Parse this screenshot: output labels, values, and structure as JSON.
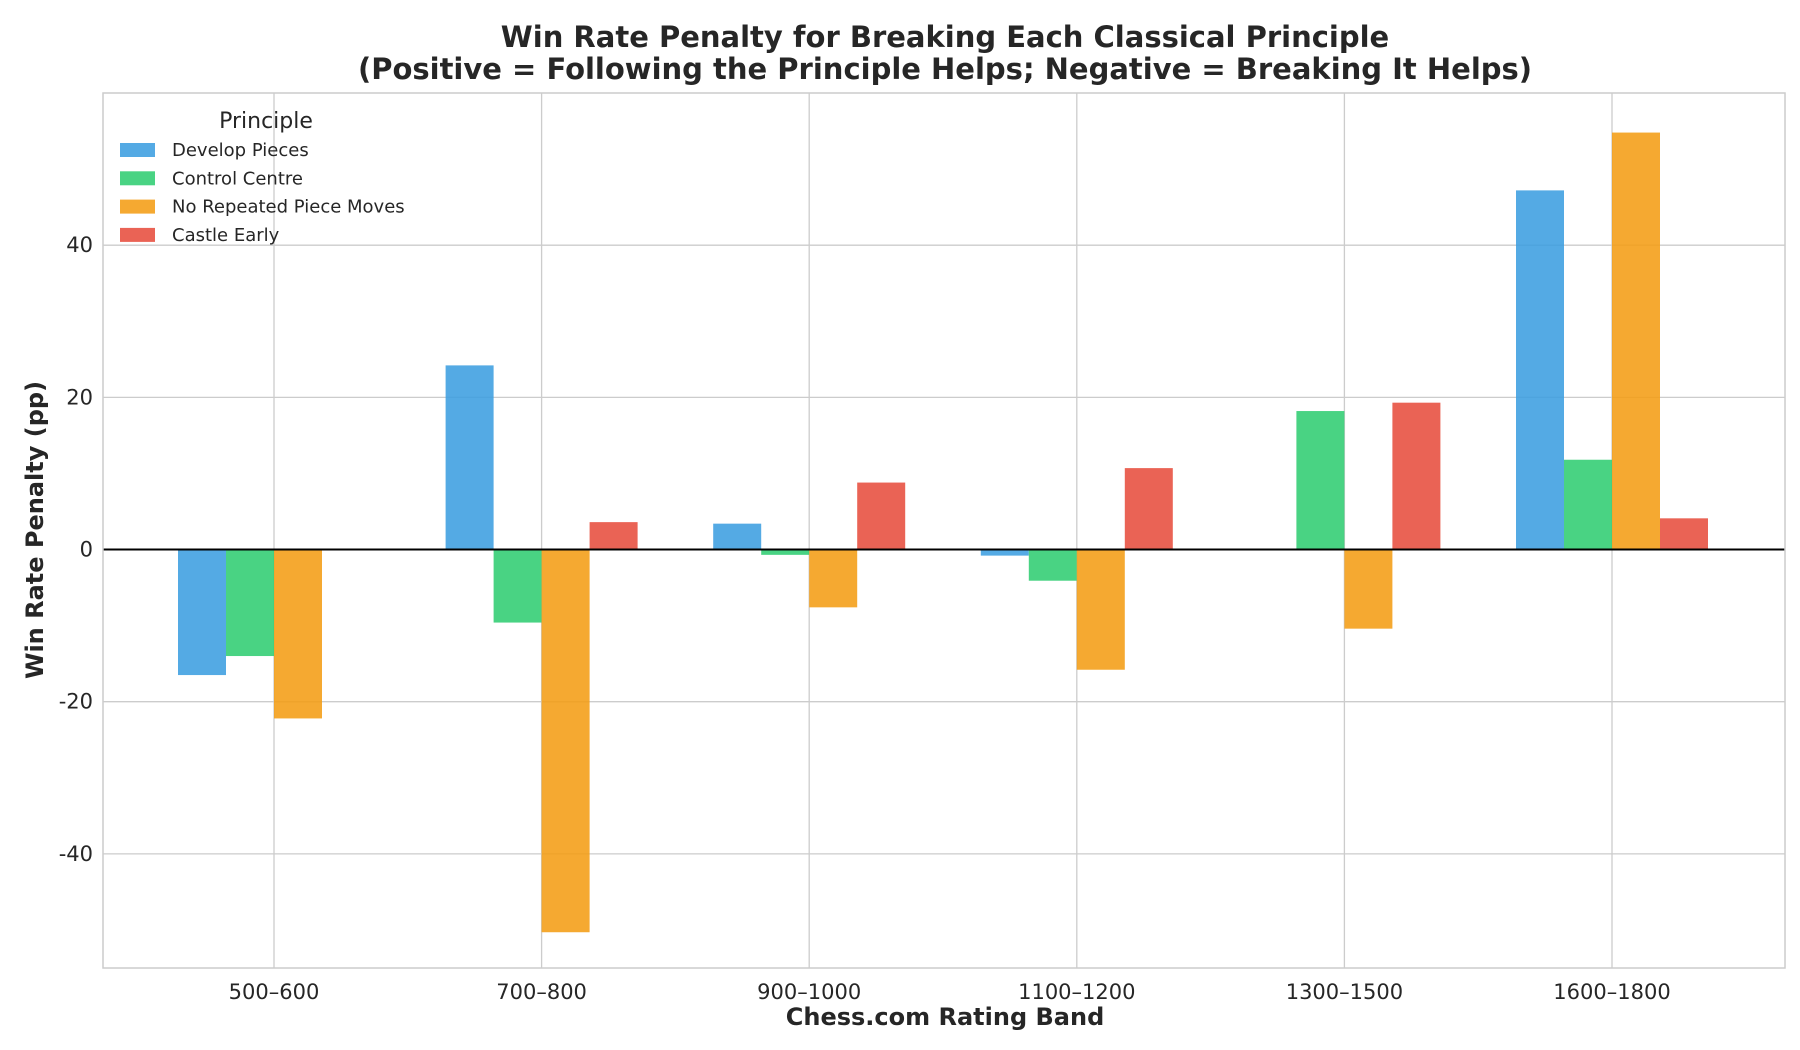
{
  "chart_data": {
    "type": "bar",
    "title": "Win Rate Penalty for Breaking Each Classical Principle",
    "subtitle": "(Positive = Following the Principle Helps; Negative = Breaking It Helps)",
    "xlabel": "Chess.com Rating Band",
    "ylabel": "Win Rate Penalty (pp)",
    "categories": [
      "500–600",
      "700–800",
      "900–1000",
      "1100–1200",
      "1300–1500",
      "1600–1800"
    ],
    "ylim": [
      -55,
      60
    ],
    "yticks": [
      -40,
      -20,
      0,
      20,
      40
    ],
    "ytick_labels": [
      "-40",
      "-20",
      "0",
      "20",
      "40"
    ],
    "grid": true,
    "legend": {
      "title": "Principle",
      "placement": "top-left"
    },
    "series": [
      {
        "name": "Develop Pieces",
        "color": "#3b9de0",
        "values": [
          -16.5,
          24.2,
          3.4,
          -0.8,
          0,
          47.2
        ]
      },
      {
        "name": "Control Centre",
        "color": "#2ecc71",
        "values": [
          -14.0,
          -9.6,
          -0.7,
          -4.1,
          18.2,
          11.8
        ]
      },
      {
        "name": "No Repeated Piece Moves",
        "color": "#f39c12",
        "values": [
          -22.2,
          -50.3,
          -7.6,
          -15.8,
          -10.4,
          54.8
        ]
      },
      {
        "name": "Castle Early",
        "color": "#e74c3c",
        "values": [
          0,
          3.6,
          8.8,
          10.7,
          19.3,
          4.1
        ]
      }
    ]
  }
}
